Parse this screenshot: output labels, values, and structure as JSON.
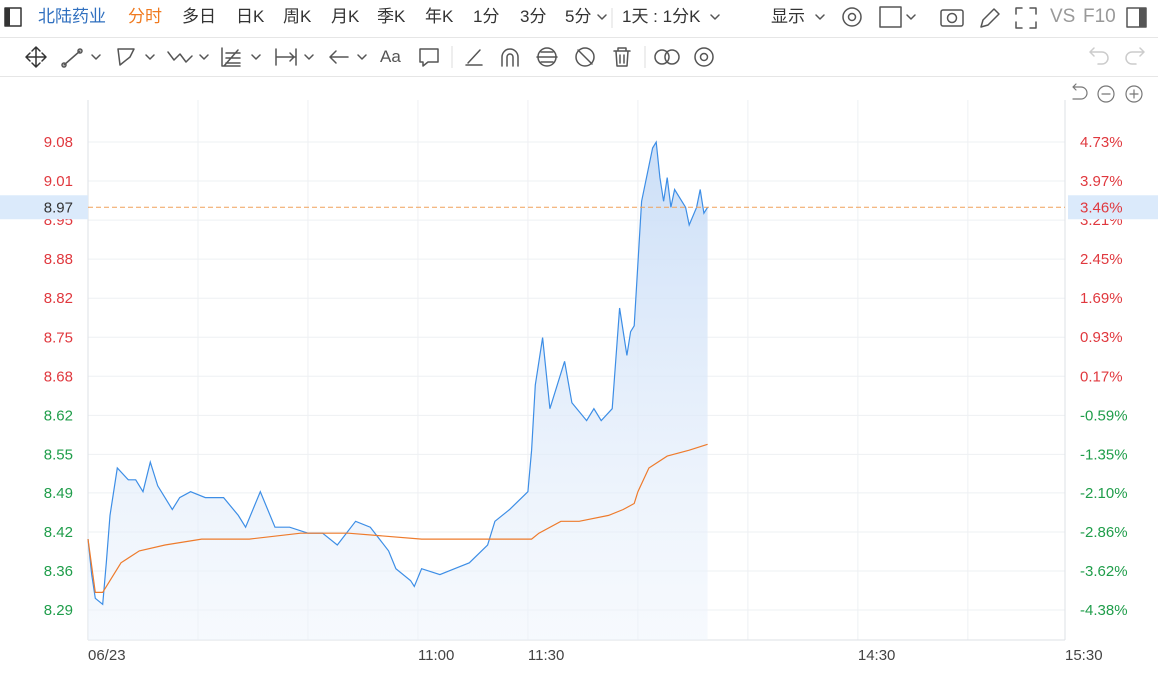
{
  "toolbar": {
    "stock_name": "北陆药业",
    "tabs": [
      "分时",
      "多日",
      "日K",
      "周K",
      "月K",
      "季K",
      "年K",
      "1分",
      "3分",
      "5分"
    ],
    "period": "1天 : 1分K",
    "display": "显示",
    "vs": "VS",
    "f10": "F10",
    "font_button": "Aa"
  },
  "chart_data": {
    "type": "line",
    "series": [
      {
        "color": "#3d8ee6",
        "x": [
          0,
          1,
          2,
          4,
          5,
          6,
          8,
          11,
          13,
          15,
          17,
          19,
          23,
          25,
          28,
          32,
          37,
          41,
          43,
          47,
          51,
          55,
          60,
          64,
          68,
          73,
          77,
          82,
          84,
          88,
          89,
          91,
          96,
          100,
          104,
          109,
          111,
          115,
          120,
          121,
          122,
          124,
          126,
          130,
          132,
          136,
          138,
          140,
          143,
          145,
          147,
          148,
          149,
          151,
          154,
          155,
          156,
          157,
          158,
          159,
          160,
          163,
          164,
          166,
          167,
          168,
          169
        ],
        "values": [
          8.41,
          8.35,
          8.31,
          8.3,
          8.37,
          8.45,
          8.53,
          8.51,
          8.51,
          8.49,
          8.54,
          8.5,
          8.46,
          8.48,
          8.49,
          8.48,
          8.48,
          8.45,
          8.43,
          8.49,
          8.43,
          8.43,
          8.42,
          8.42,
          8.4,
          8.44,
          8.43,
          8.39,
          8.36,
          8.34,
          8.33,
          8.36,
          8.35,
          8.36,
          8.37,
          8.4,
          8.44,
          8.46,
          8.49,
          8.56,
          8.67,
          8.75,
          8.63,
          8.71,
          8.64,
          8.61,
          8.63,
          8.61,
          8.63,
          8.8,
          8.72,
          8.76,
          8.77,
          8.98,
          9.07,
          9.08,
          9.02,
          8.98,
          9.02,
          8.97,
          9.0,
          8.97,
          8.94,
          8.97,
          9.0,
          8.96,
          8.97
        ]
      },
      {
        "color": "#ee7b2c",
        "x": [
          0,
          2,
          4,
          6,
          9,
          14,
          21,
          31,
          44,
          58,
          71,
          91,
          107,
          121,
          123,
          129,
          134,
          142,
          146,
          149,
          150,
          153,
          158,
          164,
          169
        ],
        "values": [
          8.41,
          8.32,
          8.32,
          8.34,
          8.37,
          8.39,
          8.4,
          8.41,
          8.41,
          8.42,
          8.42,
          8.41,
          8.41,
          8.41,
          8.42,
          8.44,
          8.44,
          8.45,
          8.46,
          8.47,
          8.49,
          8.53,
          8.55,
          8.56,
          8.57
        ]
      }
    ],
    "xlim": [
      0,
      266.5
    ],
    "xticks": [
      {
        "value": 0,
        "label": "06/23"
      },
      {
        "value": 30,
        "label": null
      },
      {
        "value": 60,
        "label": null
      },
      {
        "value": 90,
        "label": "11:00"
      },
      {
        "value": 120,
        "label": "11:30"
      },
      {
        "value": 150,
        "label": null
      },
      {
        "value": 180,
        "label": null
      },
      {
        "value": 210,
        "label": "14:30"
      },
      {
        "value": 240,
        "label": null
      },
      {
        "value": 266.5,
        "label": "15:30"
      }
    ],
    "ylim": [
      8.2397,
      9.151
    ],
    "yticks": [
      {
        "value": 9.0801,
        "label": "9.08"
      },
      {
        "value": 9.0142,
        "label": "9.01"
      },
      {
        "value": 8.9483,
        "label": "8.95"
      },
      {
        "value": 8.8824,
        "label": "8.88"
      },
      {
        "value": 8.8165,
        "label": "8.82"
      },
      {
        "value": 8.7506,
        "label": "8.75"
      },
      {
        "value": 8.6847,
        "label": "8.68"
      },
      {
        "value": 8.6188,
        "label": "8.62"
      },
      {
        "value": 8.553,
        "label": "8.55"
      },
      {
        "value": 8.4879,
        "label": "8.49"
      },
      {
        "value": 8.422,
        "label": "8.42"
      },
      {
        "value": 8.3561,
        "label": "8.36"
      },
      {
        "value": 8.2903,
        "label": "8.29"
      }
    ],
    "y2lim": [
      -4.964,
      5.548
    ],
    "y2ticks": [
      {
        "value": 4.73,
        "label": "4.73%"
      },
      {
        "value": 3.97,
        "label": "3.97%"
      },
      {
        "value": 3.21,
        "label": "3.21%"
      },
      {
        "value": 2.45,
        "label": "2.45%"
      },
      {
        "value": 1.69,
        "label": "1.69%"
      },
      {
        "value": 0.93,
        "label": "0.93%"
      },
      {
        "value": 0.17,
        "label": "0.17%"
      },
      {
        "value": -0.59,
        "label": "-0.59%"
      },
      {
        "value": -1.35,
        "label": "-1.35%"
      },
      {
        "value": -2.1,
        "label": "-2.10%"
      },
      {
        "value": -2.86,
        "label": "-2.86%"
      },
      {
        "value": -3.62,
        "label": "-3.62%"
      },
      {
        "value": -4.38,
        "label": "-4.38%"
      }
    ],
    "grid": true,
    "up_color": "#e0383e",
    "down_color": "#1f9d4a",
    "last_price": 8.97,
    "last_change": {
      "value": 3.46,
      "label": "3.46%"
    }
  }
}
